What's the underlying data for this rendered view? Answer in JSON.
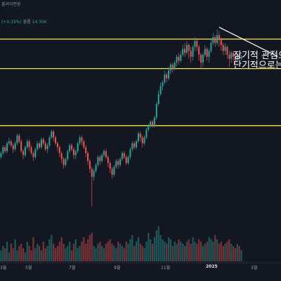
{
  "header": {
    "title": "볼리이펀용",
    "change": "(+0.33%)",
    "volume_label": "볼륨",
    "volume_value": "14.35K"
  },
  "annotation": {
    "line1": "장기적 관점으",
    "line2": "단기적으로는 ("
  },
  "colors": {
    "background": "#131722",
    "up": "#26a69a",
    "down": "#ef5350",
    "level": "#f5e642",
    "trendline": "#ffffff"
  },
  "chart_data": {
    "type": "candlestick",
    "x_ticks": [
      "3월",
      "5월",
      "7월",
      "9월",
      "11월",
      "2025",
      "3월"
    ],
    "x_tick_bold": [
      false,
      false,
      false,
      false,
      false,
      true,
      false
    ],
    "price_range": [
      0,
      100
    ],
    "horizontal_levels": [
      88,
      73,
      44
    ],
    "trendline": {
      "from": {
        "x_index": 108,
        "y": 94
      },
      "to": {
        "x_index": 128,
        "y": 72
      }
    },
    "candles": [
      [
        28,
        30,
        31,
        27
      ],
      [
        30,
        33,
        34,
        29
      ],
      [
        33,
        31,
        34,
        30
      ],
      [
        31,
        35,
        36,
        30
      ],
      [
        35,
        36,
        38,
        34
      ],
      [
        36,
        34,
        37,
        33
      ],
      [
        34,
        32,
        35,
        30
      ],
      [
        32,
        35,
        36,
        31
      ],
      [
        35,
        39,
        40,
        34
      ],
      [
        39,
        36,
        40,
        35
      ],
      [
        36,
        31,
        37,
        30
      ],
      [
        31,
        29,
        32,
        27
      ],
      [
        29,
        33,
        34,
        28
      ],
      [
        33,
        36,
        37,
        32
      ],
      [
        36,
        33,
        37,
        31
      ],
      [
        33,
        30,
        34,
        29
      ],
      [
        30,
        28,
        31,
        26
      ],
      [
        28,
        32,
        33,
        27
      ],
      [
        32,
        35,
        36,
        31
      ],
      [
        35,
        33,
        36,
        32
      ],
      [
        33,
        37,
        38,
        32
      ],
      [
        37,
        35,
        38,
        34
      ],
      [
        35,
        32,
        36,
        31
      ],
      [
        32,
        34,
        35,
        30
      ],
      [
        34,
        38,
        39,
        33
      ],
      [
        38,
        41,
        42,
        37
      ],
      [
        41,
        38,
        42,
        36
      ],
      [
        38,
        35,
        39,
        34
      ],
      [
        35,
        33,
        36,
        31
      ],
      [
        33,
        30,
        34,
        28
      ],
      [
        30,
        27,
        31,
        25
      ],
      [
        27,
        24,
        28,
        22
      ],
      [
        24,
        27,
        28,
        23
      ],
      [
        27,
        31,
        32,
        26
      ],
      [
        31,
        34,
        35,
        30
      ],
      [
        34,
        32,
        35,
        31
      ],
      [
        32,
        29,
        33,
        27
      ],
      [
        29,
        31,
        32,
        27
      ],
      [
        31,
        35,
        36,
        30
      ],
      [
        35,
        38,
        39,
        34
      ],
      [
        38,
        36,
        39,
        34
      ],
      [
        36,
        33,
        37,
        32
      ],
      [
        33,
        30,
        34,
        28
      ],
      [
        30,
        26,
        31,
        24
      ],
      [
        26,
        22,
        27,
        20
      ],
      [
        22,
        18,
        23,
        3
      ],
      [
        18,
        21,
        22,
        16
      ],
      [
        21,
        24,
        25,
        20
      ],
      [
        24,
        28,
        29,
        23
      ],
      [
        28,
        26,
        29,
        24
      ],
      [
        26,
        29,
        30,
        25
      ],
      [
        29,
        31,
        32,
        28
      ],
      [
        31,
        28,
        32,
        27
      ],
      [
        28,
        25,
        29,
        23
      ],
      [
        25,
        22,
        26,
        20
      ],
      [
        22,
        19,
        23,
        17
      ],
      [
        19,
        23,
        24,
        18
      ],
      [
        23,
        26,
        27,
        22
      ],
      [
        26,
        24,
        27,
        22
      ],
      [
        24,
        27,
        28,
        23
      ],
      [
        27,
        30,
        31,
        26
      ],
      [
        30,
        28,
        31,
        27
      ],
      [
        28,
        25,
        29,
        24
      ],
      [
        25,
        28,
        29,
        24
      ],
      [
        28,
        32,
        33,
        27
      ],
      [
        32,
        35,
        36,
        31
      ],
      [
        35,
        33,
        36,
        32
      ],
      [
        33,
        36,
        37,
        32
      ],
      [
        36,
        40,
        41,
        35
      ],
      [
        40,
        38,
        41,
        36
      ],
      [
        38,
        35,
        39,
        33
      ],
      [
        35,
        38,
        39,
        34
      ],
      [
        38,
        42,
        43,
        37
      ],
      [
        42,
        44,
        45,
        41
      ],
      [
        44,
        46,
        47,
        43
      ],
      [
        46,
        44,
        47,
        43
      ],
      [
        44,
        48,
        49,
        43
      ],
      [
        48,
        55,
        56,
        47
      ],
      [
        55,
        60,
        62,
        54
      ],
      [
        60,
        64,
        66,
        59
      ],
      [
        64,
        66,
        67,
        62
      ],
      [
        66,
        70,
        72,
        65
      ],
      [
        70,
        68,
        71,
        66
      ],
      [
        68,
        72,
        74,
        67
      ],
      [
        72,
        75,
        76,
        70
      ],
      [
        75,
        73,
        76,
        71
      ],
      [
        73,
        76,
        77,
        72
      ],
      [
        76,
        79,
        80,
        74
      ],
      [
        79,
        77,
        81,
        75
      ],
      [
        77,
        80,
        82,
        76
      ],
      [
        80,
        83,
        85,
        79
      ],
      [
        83,
        81,
        86,
        79
      ],
      [
        81,
        85,
        87,
        80
      ],
      [
        85,
        82,
        86,
        78
      ],
      [
        82,
        79,
        84,
        76
      ],
      [
        79,
        84,
        85,
        77
      ],
      [
        84,
        87,
        89,
        82
      ],
      [
        87,
        84,
        88,
        82
      ],
      [
        84,
        80,
        85,
        77
      ],
      [
        80,
        76,
        81,
        73
      ],
      [
        76,
        80,
        81,
        74
      ],
      [
        80,
        83,
        85,
        79
      ],
      [
        83,
        79,
        84,
        77
      ],
      [
        79,
        82,
        83,
        76
      ],
      [
        82,
        86,
        88,
        81
      ],
      [
        86,
        89,
        91,
        85
      ],
      [
        89,
        86,
        90,
        84
      ],
      [
        86,
        90,
        93,
        85
      ],
      [
        90,
        88,
        92,
        84
      ],
      [
        88,
        85,
        89,
        82
      ],
      [
        85,
        82,
        86,
        80
      ],
      [
        82,
        84,
        86,
        80
      ],
      [
        84,
        80,
        85,
        78
      ],
      [
        80,
        78,
        82,
        74
      ],
      [
        78,
        81,
        82,
        76
      ],
      [
        81,
        79,
        82,
        77
      ],
      [
        79,
        77,
        80,
        75
      ],
      [
        77,
        80,
        81,
        76
      ],
      [
        80,
        78,
        81,
        77
      ],
      [
        78,
        79,
        80,
        77
      ]
    ],
    "volumes": [
      5,
      7,
      6,
      9,
      4,
      8,
      6,
      10,
      5,
      7,
      8,
      6,
      4,
      9,
      7,
      5,
      11,
      6,
      8,
      7,
      5,
      9,
      6,
      7,
      10,
      12,
      8,
      6,
      7,
      9,
      11,
      8,
      6,
      7,
      9,
      5,
      8,
      10,
      6,
      7,
      9,
      11,
      8,
      10,
      12,
      13,
      7,
      6,
      8,
      9,
      7,
      6,
      8,
      9,
      10,
      8,
      7,
      6,
      9,
      8,
      7,
      6,
      9,
      8,
      10,
      12,
      7,
      9,
      11,
      8,
      7,
      6,
      9,
      13,
      10,
      8,
      11,
      14,
      16,
      12,
      10,
      9,
      8,
      11,
      10,
      7,
      9,
      8,
      10,
      9,
      8,
      7,
      9,
      10,
      8,
      11,
      9,
      8,
      10,
      9,
      7,
      8,
      9,
      11,
      10,
      9,
      12,
      10,
      8,
      9,
      7,
      8,
      9,
      10,
      8,
      7,
      6,
      8,
      7,
      5
    ]
  }
}
